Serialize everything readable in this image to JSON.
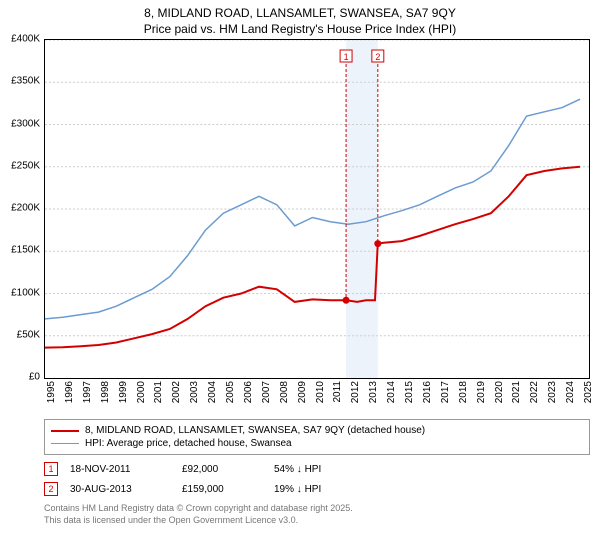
{
  "title_line1": "8, MIDLAND ROAD, LLANSAMLET, SWANSEA, SA7 9QY",
  "title_line2": "Price paid vs. HM Land Registry's House Price Index (HPI)",
  "chart": {
    "type": "line",
    "background_color": "#ffffff",
    "border_color": "#000000",
    "grid_color": "#cccccc",
    "highlight_band_color": "#dbe7f5",
    "xlim": [
      1995,
      2025.5
    ],
    "ylim": [
      0,
      400000
    ],
    "y_ticks": [
      0,
      50000,
      100000,
      150000,
      200000,
      250000,
      300000,
      350000,
      400000
    ],
    "y_tick_labels": [
      "£0",
      "£50K",
      "£100K",
      "£150K",
      "£200K",
      "£250K",
      "£300K",
      "£350K",
      "£400K"
    ],
    "x_ticks": [
      1995,
      1996,
      1997,
      1998,
      1999,
      2000,
      2001,
      2002,
      2003,
      2004,
      2005,
      2006,
      2007,
      2008,
      2009,
      2010,
      2011,
      2012,
      2013,
      2014,
      2015,
      2016,
      2017,
      2018,
      2019,
      2020,
      2021,
      2022,
      2023,
      2024,
      2025
    ],
    "x_tick_labels": [
      "1995",
      "1996",
      "1997",
      "1998",
      "1999",
      "2000",
      "2001",
      "2002",
      "2003",
      "2004",
      "2005",
      "2006",
      "2007",
      "2008",
      "2009",
      "2010",
      "2011",
      "2012",
      "2013",
      "2014",
      "2015",
      "2016",
      "2017",
      "2018",
      "2019",
      "2020",
      "2021",
      "2022",
      "2023",
      "2024",
      "2025"
    ],
    "highlight_x": [
      2011.88,
      2013.66
    ],
    "series": [
      {
        "name": "price_paid",
        "label": "8, MIDLAND ROAD, LLANSAMLET, SWANSEA, SA7 9QY (detached house)",
        "color": "#d40000",
        "line_width": 2,
        "data": [
          [
            1995,
            36000
          ],
          [
            1996,
            36500
          ],
          [
            1997,
            37500
          ],
          [
            1998,
            39000
          ],
          [
            1999,
            42000
          ],
          [
            2000,
            47000
          ],
          [
            2001,
            52000
          ],
          [
            2002,
            58000
          ],
          [
            2003,
            70000
          ],
          [
            2004,
            85000
          ],
          [
            2005,
            95000
          ],
          [
            2006,
            100000
          ],
          [
            2007,
            108000
          ],
          [
            2008,
            105000
          ],
          [
            2009,
            90000
          ],
          [
            2010,
            93000
          ],
          [
            2011,
            92000
          ],
          [
            2011.88,
            92000
          ],
          [
            2012.5,
            90000
          ],
          [
            2013,
            92000
          ],
          [
            2013.5,
            92000
          ],
          [
            2013.66,
            159000
          ],
          [
            2014,
            160000
          ],
          [
            2015,
            162000
          ],
          [
            2016,
            168000
          ],
          [
            2017,
            175000
          ],
          [
            2018,
            182000
          ],
          [
            2019,
            188000
          ],
          [
            2020,
            195000
          ],
          [
            2021,
            215000
          ],
          [
            2022,
            240000
          ],
          [
            2023,
            245000
          ],
          [
            2024,
            248000
          ],
          [
            2025,
            250000
          ]
        ]
      },
      {
        "name": "hpi",
        "label": "HPI: Average price, detached house, Swansea",
        "color": "#6b9bd1",
        "line_width": 1.5,
        "data": [
          [
            1995,
            70000
          ],
          [
            1996,
            72000
          ],
          [
            1997,
            75000
          ],
          [
            1998,
            78000
          ],
          [
            1999,
            85000
          ],
          [
            2000,
            95000
          ],
          [
            2001,
            105000
          ],
          [
            2002,
            120000
          ],
          [
            2003,
            145000
          ],
          [
            2004,
            175000
          ],
          [
            2005,
            195000
          ],
          [
            2006,
            205000
          ],
          [
            2007,
            215000
          ],
          [
            2008,
            205000
          ],
          [
            2009,
            180000
          ],
          [
            2010,
            190000
          ],
          [
            2011,
            185000
          ],
          [
            2012,
            182000
          ],
          [
            2013,
            185000
          ],
          [
            2014,
            192000
          ],
          [
            2015,
            198000
          ],
          [
            2016,
            205000
          ],
          [
            2017,
            215000
          ],
          [
            2018,
            225000
          ],
          [
            2019,
            232000
          ],
          [
            2020,
            245000
          ],
          [
            2021,
            275000
          ],
          [
            2022,
            310000
          ],
          [
            2023,
            315000
          ],
          [
            2024,
            320000
          ],
          [
            2025,
            330000
          ]
        ]
      }
    ],
    "transaction_markers": [
      {
        "n": "1",
        "x": 2011.88,
        "y": 92000,
        "color": "#d40000"
      },
      {
        "n": "2",
        "x": 2013.66,
        "y": 159000,
        "color": "#d40000"
      }
    ]
  },
  "legend": {
    "border_color": "#999999"
  },
  "transactions": [
    {
      "n": "1",
      "color": "#d40000",
      "date": "18-NOV-2011",
      "price": "£92,000",
      "delta": "54% ↓ HPI"
    },
    {
      "n": "2",
      "color": "#d40000",
      "date": "30-AUG-2013",
      "price": "£159,000",
      "delta": "19% ↓ HPI"
    }
  ],
  "attribution_line1": "Contains HM Land Registry data © Crown copyright and database right 2025.",
  "attribution_line2": "This data is licensed under the Open Government Licence v3.0."
}
